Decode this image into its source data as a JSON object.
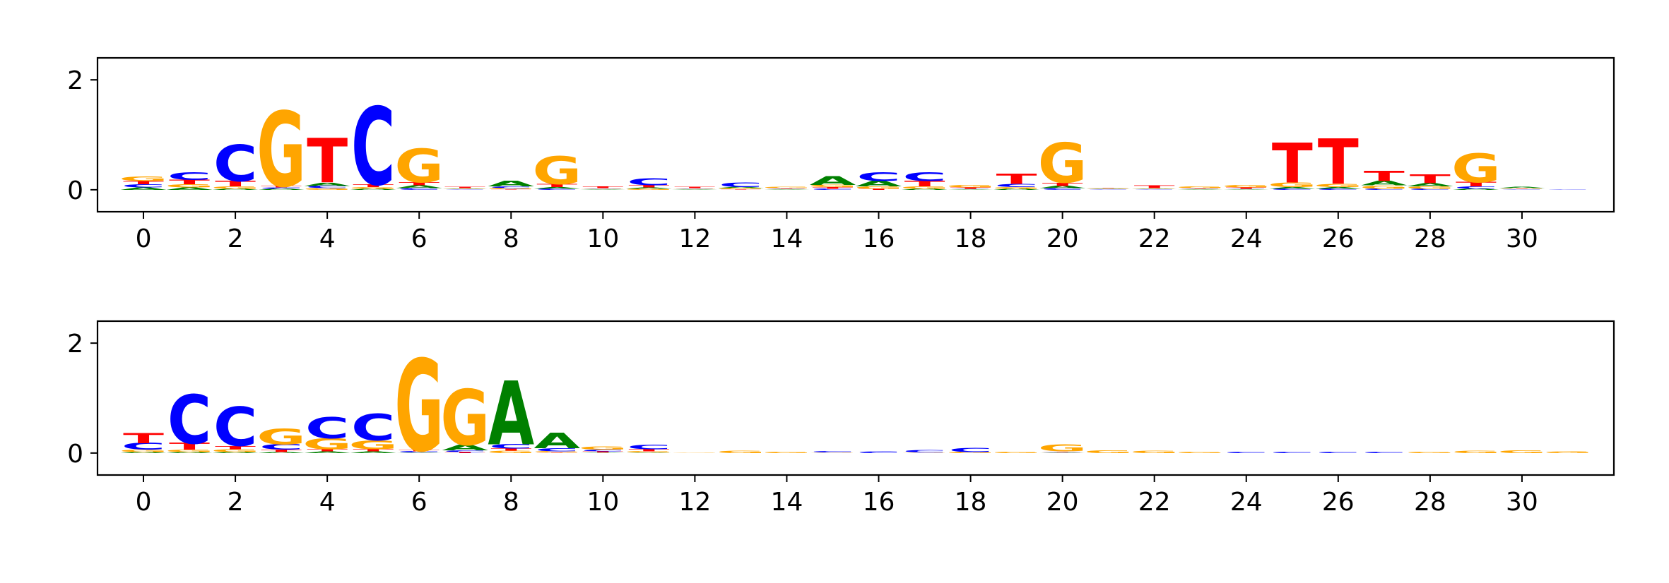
{
  "colors": {
    "A": "#008000",
    "C": "#0000ff",
    "G": "#ffa500",
    "T": "#ff0000"
  },
  "chart_data": [
    {
      "type": "sequence-logo",
      "title": "",
      "xlabel": "",
      "ylabel": "",
      "xlim": [
        -1,
        32
      ],
      "ylim": [
        -0.4,
        2.4
      ],
      "x_ticks": [
        0,
        2,
        4,
        6,
        8,
        10,
        12,
        14,
        16,
        18,
        20,
        22,
        24,
        26,
        28,
        30
      ],
      "y_ticks": [
        0,
        2
      ],
      "grid": false,
      "positions": [
        {
          "pos": 0,
          "heights": {
            "A": 0.04,
            "C": 0.06,
            "T": 0.06,
            "G": 0.08
          }
        },
        {
          "pos": 1,
          "heights": {
            "A": 0.04,
            "T": 0.08,
            "G": 0.06,
            "C": 0.14
          }
        },
        {
          "pos": 2,
          "heights": {
            "A": 0.02,
            "G": 0.04,
            "T": 0.1,
            "C": 0.65
          }
        },
        {
          "pos": 3,
          "heights": {
            "A": 0.02,
            "C": 0.02,
            "T": 0.03,
            "G": 1.35
          }
        },
        {
          "pos": 4,
          "heights": {
            "C": 0.04,
            "G": 0.03,
            "A": 0.06,
            "T": 0.8
          }
        },
        {
          "pos": 5,
          "heights": {
            "A": 0.02,
            "G": 0.03,
            "T": 0.05,
            "C": 1.4
          }
        },
        {
          "pos": 6,
          "heights": {
            "C": 0.03,
            "A": 0.05,
            "T": 0.06,
            "G": 0.6
          }
        },
        {
          "pos": 7,
          "heights": {
            "C": 0.01,
            "G": 0.01,
            "A": 0.01,
            "T": 0.02
          }
        },
        {
          "pos": 8,
          "heights": {
            "T": 0.01,
            "G": 0.02,
            "C": 0.03,
            "A": 0.1
          }
        },
        {
          "pos": 9,
          "heights": {
            "C": 0.02,
            "A": 0.03,
            "T": 0.06,
            "G": 0.5
          }
        },
        {
          "pos": 10,
          "heights": {
            "A": 0.01,
            "G": 0.01,
            "C": 0.01,
            "T": 0.03
          }
        },
        {
          "pos": 11,
          "heights": {
            "G": 0.02,
            "A": 0.02,
            "T": 0.04,
            "C": 0.12
          }
        },
        {
          "pos": 12,
          "heights": {
            "A": 0.01,
            "G": 0.01,
            "C": 0.01,
            "T": 0.02
          }
        },
        {
          "pos": 13,
          "heights": {
            "T": 0.01,
            "G": 0.02,
            "A": 0.02,
            "C": 0.08
          }
        },
        {
          "pos": 14,
          "heights": {
            "A": 0.01,
            "C": 0.01,
            "T": 0.01,
            "G": 0.02
          }
        },
        {
          "pos": 15,
          "heights": {
            "C": 0.02,
            "T": 0.03,
            "G": 0.04,
            "A": 0.16
          }
        },
        {
          "pos": 16,
          "heights": {
            "T": 0.02,
            "G": 0.04,
            "A": 0.1,
            "C": 0.16
          }
        },
        {
          "pos": 17,
          "heights": {
            "A": 0.02,
            "G": 0.04,
            "T": 0.1,
            "C": 0.16
          }
        },
        {
          "pos": 18,
          "heights": {
            "A": 0.01,
            "C": 0.01,
            "T": 0.02,
            "G": 0.04
          }
        },
        {
          "pos": 19,
          "heights": {
            "A": 0.02,
            "G": 0.03,
            "C": 0.06,
            "T": 0.18
          }
        },
        {
          "pos": 20,
          "heights": {
            "C": 0.03,
            "A": 0.04,
            "T": 0.06,
            "G": 0.72
          }
        },
        {
          "pos": 21,
          "heights": {
            "C": 0.01,
            "A": 0.01,
            "G": 0.01,
            "T": 0.01
          }
        },
        {
          "pos": 22,
          "heights": {
            "C": 0.01,
            "A": 0.01,
            "G": 0.01,
            "T": 0.05
          }
        },
        {
          "pos": 23,
          "heights": {
            "A": 0.01,
            "C": 0.01,
            "T": 0.01,
            "G": 0.03
          }
        },
        {
          "pos": 24,
          "heights": {
            "A": 0.01,
            "C": 0.01,
            "T": 0.02,
            "G": 0.04
          }
        },
        {
          "pos": 25,
          "heights": {
            "C": 0.02,
            "A": 0.03,
            "G": 0.08,
            "T": 0.72
          }
        },
        {
          "pos": 26,
          "heights": {
            "C": 0.02,
            "A": 0.03,
            "G": 0.06,
            "T": 0.82
          }
        },
        {
          "pos": 27,
          "heights": {
            "C": 0.02,
            "G": 0.06,
            "A": 0.08,
            "T": 0.18
          }
        },
        {
          "pos": 28,
          "heights": {
            "C": 0.02,
            "G": 0.04,
            "A": 0.06,
            "T": 0.16
          }
        },
        {
          "pos": 29,
          "heights": {
            "A": 0.02,
            "C": 0.04,
            "T": 0.08,
            "G": 0.52
          }
        },
        {
          "pos": 30,
          "heights": {
            "C": 0.01,
            "T": 0.01,
            "G": 0.01,
            "A": 0.02
          }
        },
        {
          "pos": 31,
          "heights": {
            "A": 0.0,
            "G": 0.0,
            "T": 0.0,
            "C": 0.01
          }
        }
      ]
    },
    {
      "type": "sequence-logo",
      "title": "",
      "xlabel": "",
      "ylabel": "",
      "xlim": [
        -1,
        32
      ],
      "ylim": [
        -0.4,
        2.4
      ],
      "x_ticks": [
        0,
        2,
        4,
        6,
        8,
        10,
        12,
        14,
        16,
        18,
        20,
        22,
        24,
        26,
        28,
        30
      ],
      "y_ticks": [
        0,
        2
      ],
      "grid": false,
      "positions": [
        {
          "pos": 0,
          "heights": {
            "A": 0.02,
            "G": 0.04,
            "T": 0.18,
            "C": 0.12
          }
        },
        {
          "pos": 1,
          "heights": {
            "A": 0.02,
            "G": 0.04,
            "T": 0.12,
            "C": 0.88
          }
        },
        {
          "pos": 2,
          "heights": {
            "A": 0.02,
            "G": 0.05,
            "T": 0.06,
            "C": 0.7
          }
        },
        {
          "pos": 3,
          "heights": {
            "A": 0.02,
            "T": 0.04,
            "C": 0.1,
            "G": 0.28
          }
        },
        {
          "pos": 4,
          "heights": {
            "A": 0.03,
            "T": 0.04,
            "G": 0.2,
            "C": 0.38
          }
        },
        {
          "pos": 5,
          "heights": {
            "A": 0.03,
            "T": 0.04,
            "G": 0.16,
            "C": 0.48
          }
        },
        {
          "pos": 6,
          "heights": {
            "A": 0.01,
            "C": 0.02,
            "T": 0.02,
            "G": 1.65
          }
        },
        {
          "pos": 7,
          "heights": {
            "T": 0.02,
            "C": 0.03,
            "A": 0.1,
            "G": 1.0
          }
        },
        {
          "pos": 8,
          "heights": {
            "G": 0.04,
            "T": 0.04,
            "C": 0.08,
            "A": 1.15
          }
        },
        {
          "pos": 9,
          "heights": {
            "T": 0.01,
            "G": 0.02,
            "C": 0.06,
            "A": 0.28
          }
        },
        {
          "pos": 10,
          "heights": {
            "A": 0.01,
            "T": 0.02,
            "C": 0.03,
            "G": 0.06
          }
        },
        {
          "pos": 11,
          "heights": {
            "A": 0.01,
            "G": 0.02,
            "T": 0.04,
            "C": 0.08
          }
        },
        {
          "pos": 12,
          "heights": {
            "A": 0.0,
            "C": 0.0,
            "T": 0.0,
            "G": 0.01
          }
        },
        {
          "pos": 13,
          "heights": {
            "A": 0.0,
            "C": 0.0,
            "T": 0.0,
            "G": 0.04
          }
        },
        {
          "pos": 14,
          "heights": {
            "A": 0.0,
            "C": 0.0,
            "T": 0.0,
            "G": 0.02
          }
        },
        {
          "pos": 15,
          "heights": {
            "A": 0.0,
            "T": 0.0,
            "G": 0.01,
            "C": 0.02
          }
        },
        {
          "pos": 16,
          "heights": {
            "A": 0.0,
            "T": 0.0,
            "G": 0.0,
            "C": 0.03
          }
        },
        {
          "pos": 17,
          "heights": {
            "A": 0.0,
            "T": 0.0,
            "G": 0.01,
            "C": 0.04
          }
        },
        {
          "pos": 18,
          "heights": {
            "A": 0.0,
            "T": 0.0,
            "G": 0.02,
            "C": 0.07
          }
        },
        {
          "pos": 19,
          "heights": {
            "A": 0.0,
            "C": 0.0,
            "T": 0.0,
            "G": 0.02
          }
        },
        {
          "pos": 20,
          "heights": {
            "A": 0.01,
            "C": 0.01,
            "T": 0.01,
            "G": 0.12
          }
        },
        {
          "pos": 21,
          "heights": {
            "A": 0.0,
            "C": 0.0,
            "T": 0.0,
            "G": 0.05
          }
        },
        {
          "pos": 22,
          "heights": {
            "A": 0.0,
            "C": 0.0,
            "T": 0.0,
            "G": 0.04
          }
        },
        {
          "pos": 23,
          "heights": {
            "A": 0.0,
            "C": 0.0,
            "T": 0.0,
            "G": 0.02
          }
        },
        {
          "pos": 24,
          "heights": {
            "A": 0.0,
            "T": 0.0,
            "G": 0.0,
            "C": 0.02
          }
        },
        {
          "pos": 25,
          "heights": {
            "A": 0.0,
            "T": 0.0,
            "G": 0.0,
            "C": 0.02
          }
        },
        {
          "pos": 26,
          "heights": {
            "A": 0.0,
            "T": 0.0,
            "G": 0.0,
            "C": 0.02
          }
        },
        {
          "pos": 27,
          "heights": {
            "A": 0.0,
            "T": 0.0,
            "G": 0.0,
            "C": 0.02
          }
        },
        {
          "pos": 28,
          "heights": {
            "A": 0.0,
            "C": 0.0,
            "T": 0.0,
            "G": 0.02
          }
        },
        {
          "pos": 29,
          "heights": {
            "A": 0.0,
            "C": 0.0,
            "T": 0.0,
            "G": 0.04
          }
        },
        {
          "pos": 30,
          "heights": {
            "A": 0.0,
            "C": 0.0,
            "T": 0.0,
            "G": 0.05
          }
        },
        {
          "pos": 31,
          "heights": {
            "A": 0.0,
            "C": 0.0,
            "T": 0.0,
            "G": 0.03
          }
        }
      ]
    }
  ]
}
